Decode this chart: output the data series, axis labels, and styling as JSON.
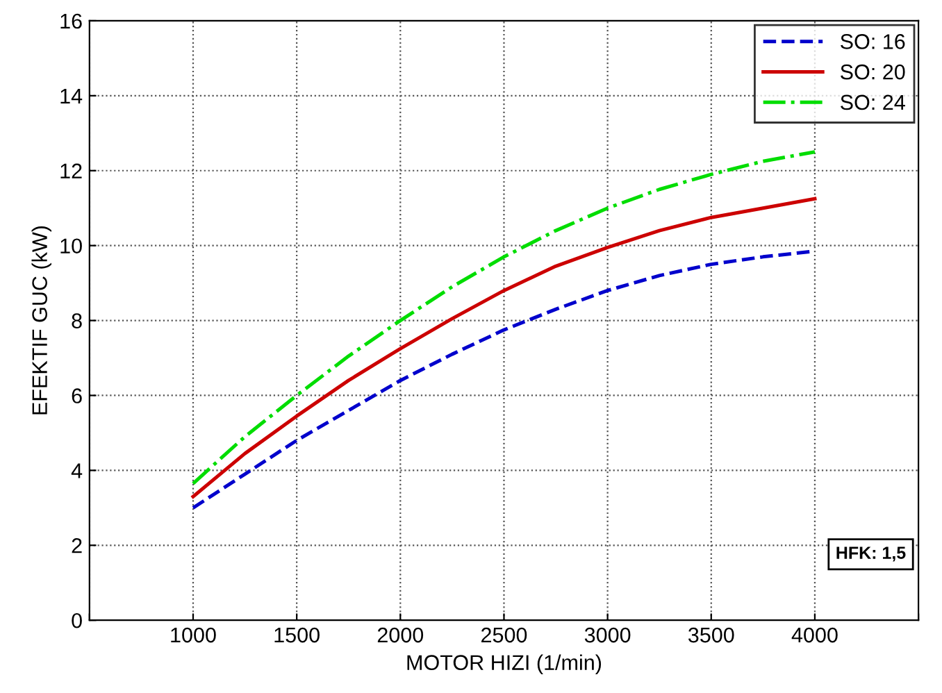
{
  "chart_data": {
    "type": "line",
    "xlabel": "MOTOR HIZI (1/min)",
    "ylabel": "EFEKTIF GUC (kW)",
    "x": [
      1000,
      1250,
      1500,
      1750,
      2000,
      2250,
      2500,
      2750,
      3000,
      3250,
      3500,
      3750,
      4000
    ],
    "series": [
      {
        "name": "SO: 16",
        "color": "#0000cc",
        "line_style": "dashed",
        "values": [
          3.0,
          3.9,
          4.8,
          5.6,
          6.4,
          7.1,
          7.75,
          8.3,
          8.8,
          9.2,
          9.5,
          9.7,
          9.85
        ]
      },
      {
        "name": "SO: 20",
        "color": "#cc0000",
        "line_style": "solid",
        "values": [
          3.3,
          4.45,
          5.45,
          6.4,
          7.25,
          8.05,
          8.8,
          9.45,
          9.95,
          10.4,
          10.75,
          11.0,
          11.25
        ]
      },
      {
        "name": "SO: 24",
        "color": "#00dd00",
        "line_style": "dashdot",
        "values": [
          3.65,
          4.9,
          6.0,
          7.05,
          8.0,
          8.9,
          9.7,
          10.4,
          11.0,
          11.5,
          11.9,
          12.25,
          12.5
        ]
      }
    ],
    "xlim": [
      500,
      4500
    ],
    "xticks": [
      {
        "value": 500,
        "label": null
      },
      1000,
      1500,
      2000,
      2500,
      3000,
      3500,
      4000,
      {
        "value": 4500,
        "label": null
      }
    ],
    "ylim": [
      0,
      16
    ],
    "yticks": [
      0,
      2,
      4,
      6,
      8,
      10,
      12,
      14,
      16
    ],
    "grid": true,
    "legend": "top right",
    "marker": "none",
    "annotations": [
      "HFK: 1,5"
    ]
  }
}
